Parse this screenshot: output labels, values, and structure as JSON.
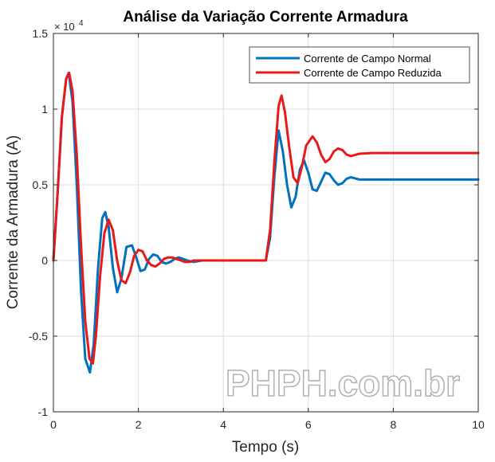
{
  "chart_data": {
    "type": "line",
    "title": "Análise da Variação Corrente Armadura",
    "xlabel": "Tempo (s)",
    "ylabel": "Corrente da Armadura (A)",
    "xlim": [
      0,
      10
    ],
    "ylim": [
      -1,
      1.5
    ],
    "y_multiplier_label": "× 10",
    "y_multiplier_exponent": "4",
    "grid": true,
    "legend_position": "top-right",
    "x_ticks": [
      {
        "value": 0,
        "label": "0"
      },
      {
        "value": 2,
        "label": "2"
      },
      {
        "value": 4,
        "label": "4"
      },
      {
        "value": 6,
        "label": "6"
      },
      {
        "value": 8,
        "label": "8"
      },
      {
        "value": 10,
        "label": "10"
      }
    ],
    "y_ticks": [
      {
        "value": -1,
        "label": "-1"
      },
      {
        "value": -0.5,
        "label": "-0.5"
      },
      {
        "value": 0,
        "label": "0"
      },
      {
        "value": 0.5,
        "label": "0.5"
      },
      {
        "value": 1,
        "label": "1"
      },
      {
        "value": 1.5,
        "label": "1.5"
      }
    ],
    "series": [
      {
        "name": "Corrente de Campo Normal",
        "color": "#0072BD",
        "x": [
          0,
          0.1,
          0.2,
          0.3,
          0.36,
          0.45,
          0.55,
          0.65,
          0.75,
          0.86,
          0.95,
          1.05,
          1.15,
          1.22,
          1.3,
          1.4,
          1.5,
          1.6,
          1.72,
          1.85,
          1.95,
          2.05,
          2.15,
          2.25,
          2.35,
          2.45,
          2.55,
          2.65,
          2.75,
          2.85,
          2.95,
          3.05,
          3.15,
          3.3,
          3.5,
          3.7,
          4.0,
          4.5,
          5.0,
          5.1,
          5.2,
          5.3,
          5.4,
          5.5,
          5.6,
          5.7,
          5.8,
          5.9,
          6.0,
          6.1,
          6.2,
          6.3,
          6.4,
          6.5,
          6.6,
          6.7,
          6.8,
          6.9,
          7.0,
          7.2,
          7.5,
          8.0,
          9.0,
          10.0
        ],
        "y": [
          0,
          0.45,
          0.95,
          1.2,
          1.24,
          1.05,
          0.5,
          -0.2,
          -0.65,
          -0.74,
          -0.55,
          -0.05,
          0.28,
          0.32,
          0.22,
          -0.05,
          -0.21,
          -0.12,
          0.09,
          0.1,
          0.02,
          -0.07,
          -0.06,
          0.01,
          0.04,
          0.03,
          -0.01,
          -0.02,
          -0.01,
          0.01,
          0.02,
          0.01,
          0.0,
          -0.01,
          0.0,
          0.0,
          0.0,
          0.0,
          0.0,
          0.15,
          0.55,
          0.86,
          0.72,
          0.5,
          0.35,
          0.42,
          0.6,
          0.66,
          0.58,
          0.47,
          0.46,
          0.52,
          0.58,
          0.57,
          0.53,
          0.5,
          0.51,
          0.54,
          0.55,
          0.535,
          0.535,
          0.535,
          0.535,
          0.535
        ]
      },
      {
        "name": "Corrente de Campo Reduzida",
        "color": "#E8191B",
        "x": [
          0,
          0.1,
          0.2,
          0.3,
          0.37,
          0.45,
          0.55,
          0.65,
          0.75,
          0.85,
          0.93,
          1.0,
          1.1,
          1.2,
          1.3,
          1.4,
          1.5,
          1.6,
          1.7,
          1.8,
          1.9,
          2.0,
          2.1,
          2.2,
          2.3,
          2.4,
          2.5,
          2.6,
          2.7,
          2.8,
          2.9,
          3.0,
          3.1,
          3.2,
          3.3,
          3.5,
          3.7,
          4.0,
          4.5,
          5.0,
          5.1,
          5.2,
          5.3,
          5.37,
          5.45,
          5.55,
          5.65,
          5.75,
          5.85,
          5.95,
          6.1,
          6.2,
          6.3,
          6.4,
          6.5,
          6.6,
          6.7,
          6.8,
          6.9,
          7.0,
          7.2,
          7.5,
          8.0,
          9.0,
          10.0
        ],
        "y": [
          0,
          0.45,
          0.95,
          1.2,
          1.24,
          1.12,
          0.7,
          0.1,
          -0.4,
          -0.65,
          -0.68,
          -0.5,
          -0.1,
          0.18,
          0.27,
          0.2,
          0.0,
          -0.13,
          -0.15,
          -0.08,
          0.03,
          0.07,
          0.06,
          0.0,
          -0.03,
          -0.04,
          -0.02,
          0.01,
          0.02,
          0.02,
          0.01,
          0.0,
          -0.01,
          -0.01,
          0.0,
          0.0,
          0.0,
          0.0,
          0.0,
          0.0,
          0.2,
          0.65,
          1.02,
          1.09,
          0.98,
          0.75,
          0.55,
          0.51,
          0.62,
          0.76,
          0.82,
          0.78,
          0.7,
          0.65,
          0.67,
          0.72,
          0.74,
          0.73,
          0.7,
          0.69,
          0.705,
          0.71,
          0.71,
          0.71,
          0.71
        ]
      }
    ]
  },
  "watermark": "PHPH.com.br"
}
